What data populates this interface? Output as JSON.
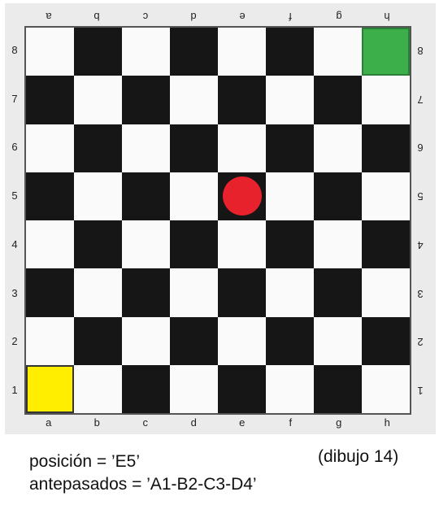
{
  "board": {
    "files": [
      "a",
      "b",
      "c",
      "d",
      "e",
      "f",
      "g",
      "h"
    ],
    "ranks": [
      "8",
      "7",
      "6",
      "5",
      "4",
      "3",
      "2",
      "1"
    ],
    "highlights": [
      {
        "square": "h8",
        "color": "#3daf4a"
      },
      {
        "square": "a1",
        "color": "#ffee00"
      }
    ],
    "piece": {
      "square": "e5",
      "color": "#e8222c"
    }
  },
  "caption": {
    "position_line": "posición = ’E5’",
    "ancestors_line": "antepasados = ’A1-B2-C3-D4’",
    "figure_label": "(dibujo 14)"
  }
}
